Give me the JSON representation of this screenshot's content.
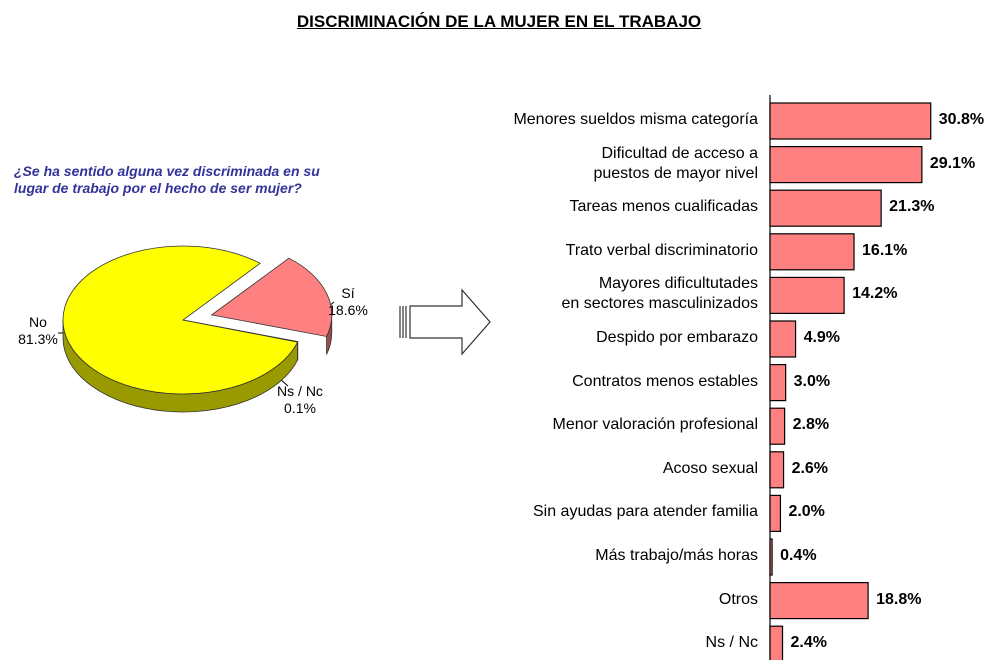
{
  "title": "DISCRIMINACIÓN DE LA MUJER EN EL TRABAJO",
  "chart_data": [
    {
      "type": "pie",
      "title": "¿Se ha sentido alguna vez discriminada en su lugar de trabajo por el hecho de ser mujer?",
      "categories": [
        "No",
        "Sí",
        "Ns / Nc"
      ],
      "values": [
        81.3,
        18.6,
        0.1
      ],
      "value_labels": [
        "81.3%",
        "18.6%",
        "0.1%"
      ],
      "colors": [
        "#ffff00",
        "#ff8080",
        "#c0c0c0"
      ]
    },
    {
      "type": "bar",
      "orientation": "horizontal",
      "categories": [
        "Menores sueldos misma categoría",
        "Dificultad de acceso a\npuestos de mayor nivel",
        "Tareas menos cualificadas",
        "Trato verbal discriminatorio",
        "Mayores dificultutades\nen sectores masculinizados",
        "Despido por embarazo",
        "Contratos menos estables",
        "Menor valoración profesional",
        "Acoso sexual",
        "Sin ayudas para atender familia",
        "Más trabajo/más horas",
        "Otros",
        "Ns / Nc"
      ],
      "values": [
        30.8,
        29.1,
        21.3,
        16.1,
        14.2,
        4.9,
        3.0,
        2.8,
        2.6,
        2.0,
        0.4,
        18.8,
        2.4
      ],
      "value_labels": [
        "30.8%",
        "29.1%",
        "21.3%",
        "16.1%",
        "14.2%",
        "4.9%",
        "3.0%",
        "2.8%",
        "2.6%",
        "2.0%",
        "0.4%",
        "18.8%",
        "2.4%"
      ],
      "color": "#ff8080",
      "xlim": [
        0,
        32
      ]
    }
  ]
}
